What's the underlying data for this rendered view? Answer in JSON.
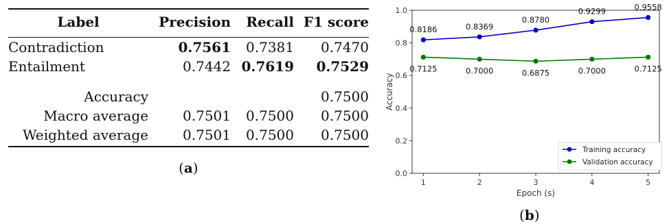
{
  "table": {
    "headers": [
      "Label",
      "Precision",
      "Recall",
      "F1 score"
    ],
    "rows": [
      {
        "label": "Contradiction",
        "precision": "0.7561",
        "recall": "0.7381",
        "f1": "0.7470",
        "bold": [
          "precision"
        ]
      },
      {
        "label": "Entailment",
        "precision": "0.7442",
        "recall": "0.7619",
        "f1": "0.7529",
        "bold": [
          "recall",
          "f1"
        ]
      }
    ],
    "summary": [
      {
        "label": "Accuracy",
        "precision": "",
        "recall": "",
        "f1": "0.7500"
      },
      {
        "label": "Macro average",
        "precision": "0.7501",
        "recall": "0.7500",
        "f1": "0.7500"
      },
      {
        "label": "Weighted average",
        "precision": "0.7501",
        "recall": "0.7500",
        "f1": "0.7500"
      }
    ],
    "caption": "(a)"
  },
  "chart_caption": "(b)",
  "chart_data": {
    "type": "line",
    "x": [
      1,
      2,
      3,
      4,
      5
    ],
    "xlabel": "Epoch (s)",
    "ylabel": "Accuracy",
    "xlim": [
      0.8,
      5.2
    ],
    "ylim": [
      0.0,
      1.0
    ],
    "yticks": [
      "0.0",
      "0.2",
      "0.4",
      "0.6",
      "0.8",
      "1.0"
    ],
    "xticks": [
      "1",
      "2",
      "3",
      "4",
      "5"
    ],
    "grid": false,
    "legend_position": "bottom-right",
    "series": [
      {
        "name": "Training accuracy",
        "color": "#0000cc",
        "values": [
          0.8186,
          0.8369,
          0.878,
          0.9299,
          0.9558
        ],
        "labels": [
          "0.8186",
          "0.8369",
          "0.8780",
          "0.9299",
          "0.9558"
        ],
        "label_position": "above"
      },
      {
        "name": "Validation accuracy",
        "color": "#007a00",
        "values": [
          0.7125,
          0.7,
          0.6875,
          0.7,
          0.7125
        ],
        "labels": [
          "0.7125",
          "0.7000",
          "0.6875",
          "0.7000",
          "0.7125"
        ],
        "label_position": "below"
      }
    ]
  }
}
